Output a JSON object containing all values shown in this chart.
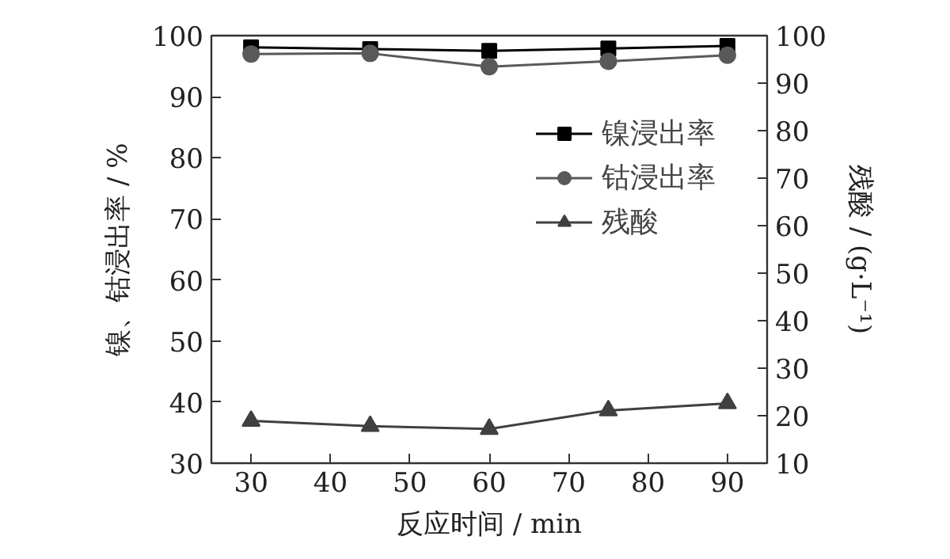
{
  "chart_data": {
    "type": "line",
    "xlabel": "反应时间 / min",
    "ylabel": "镍、钴浸出率 / %",
    "y2label": "残酸 / (g·L⁻¹)",
    "x": [
      30,
      45,
      60,
      75,
      90
    ],
    "series": [
      {
        "name": "镍浸出率",
        "color": "#000000",
        "marker": "square",
        "values": [
          98.1,
          97.8,
          97.5,
          97.9,
          98.3
        ]
      },
      {
        "name": "钴浸出率",
        "color": "#595959",
        "marker": "circle",
        "values": [
          97.0,
          97.1,
          94.9,
          95.8,
          96.8
        ]
      },
      {
        "name": "残酸",
        "color": "#404040",
        "marker": "triangle",
        "axis": "y2",
        "values": [
          18.9,
          17.8,
          17.2,
          21.1,
          22.6
        ]
      }
    ],
    "xlim": [
      25,
      95
    ],
    "xticks": [
      30,
      40,
      50,
      60,
      70,
      80,
      90
    ],
    "ylim": [
      30,
      100
    ],
    "yticks": [
      30,
      40,
      50,
      60,
      70,
      80,
      90,
      100
    ],
    "y2lim": [
      10,
      100
    ],
    "y2ticks": [
      10,
      20,
      30,
      40,
      50,
      60,
      70,
      80,
      90,
      100
    ],
    "legend": "right",
    "grid": false,
    "line_style": "solid"
  }
}
